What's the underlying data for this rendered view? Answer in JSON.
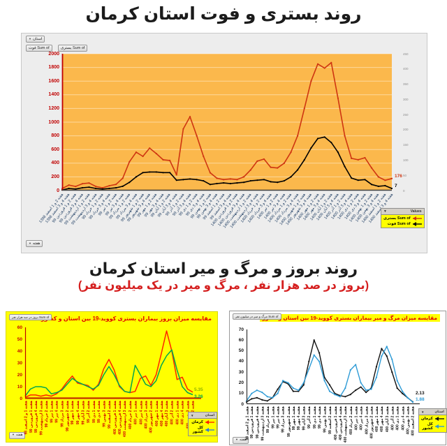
{
  "page": {
    "background": "#ffffff",
    "section1_title": "روند بستری و فوت استان کرمان",
    "section2_title": "روند بروز و مرگ و میر استان کرمان",
    "section2_subtitle": "(بروز در صد هزار نفر ، مرگ و میر در یک میلیون نفر)"
  },
  "chart_data": [
    {
      "id": "hospitalization-death-trend",
      "type": "line",
      "title": "",
      "plot_bg": "#FBB84C",
      "panel_bg": "#EDEDED",
      "ylabel_color": "#C00000",
      "x_label_color": "#17375E",
      "left_axis": {
        "min": 0,
        "max": 2000,
        "step": 200
      },
      "right_axis": {
        "min": 0,
        "max": 450,
        "step": 50
      },
      "pivot": {
        "filter_button": "استان",
        "field_buttons": [
          "Sum of فوت",
          "Sum of بستری"
        ],
        "axis_button": "هفته",
        "legend_header": "Values"
      },
      "x_labels": [
        "هفته 2 و 1 اسفند 1398",
        "هفته 4 و 3 اسفند 1398",
        "هفته 2 و 1 فروردین 99",
        "هفته 4 و 3 فروردین 99",
        "هفته 2 و 1 اردیبهشت 99",
        "هفته 4 و 3 اردیبهشت 99",
        "هفته 2 و 1 خرداد 99",
        "هفته 4 و 3 خرداد 99",
        "هفته 2 و 1 تیر 99",
        "هفته 4 و 3 تیر 99",
        "هفته 2 و 1 مرداد 99",
        "هفته 4 و 3 مرداد 99",
        "هفته 2 و 1 شهریور 99",
        "هفته 4 و 3 شهریور 99",
        "هفته 2 و 1 مهر 99",
        "هفته 4 و 3 مهر 99",
        "هفته 2 و 1 آبان 99",
        "هفته 4 و 3 آبان 99",
        "هفته 2 و 1 آذر 99",
        "هفته 4 و 3 آذر 99",
        "هفته 2 و 1 دی 99",
        "هفته 4 و 3 دی 99",
        "هفته 2 و 1 بهمن 99",
        "هفته 4 و 3 بهمن 99",
        "هفته 2 و 1 اسفند 99",
        "هفته 4 و 3 اسفند 99",
        "هفته 2 و 1 فروردین 1400",
        "هفته 4 و 3 فروردین 1400",
        "هفته 2 و 1 اردیبهشت 1400",
        "هفته 4 و 3 اردیبهشت 1400",
        "هفته 2 و 1 خرداد 1400",
        "هفته 4 و 3 خرداد 1400",
        "هفته 2 و 1 تیر 1400",
        "هفته 4 و 3 تیر 1400",
        "هفته 2 و 1 مرداد 1400",
        "هفته 4 و 3 مرداد 1400",
        "هفته 2 و 1 شهریور 1400",
        "هفته 4 و 3 شهریور 1400",
        "هفته 2 و 1 مهر 1400",
        "هفته 4 و 3 مهر 1400",
        "هفته 2 و 1 آبان 1400",
        "هفته 4 و 3 آبان 1400",
        "هفته 2 و 1 آذر 1400",
        "هفته 4 و 3 آذر 1400",
        "هفته 2 و 1 دی 1400",
        "هفته 4 و 3 دی 1400",
        "هفته 2 و 1 بهمن 1400",
        "هفته 4 و 3 بهمن 1400",
        "هفته 2 و 1 اسفند 1400",
        "هفته 4 و 3 اسفند 1400"
      ],
      "series": [
        {
          "name": "Sum of بستری",
          "color": "#CE3511",
          "axis": "left",
          "end_label": "176",
          "values": [
            30,
            80,
            60,
            100,
            110,
            60,
            40,
            70,
            90,
            180,
            420,
            560,
            500,
            620,
            540,
            450,
            440,
            230,
            900,
            1080,
            800,
            500,
            260,
            180,
            160,
            170,
            160,
            200,
            300,
            430,
            460,
            340,
            330,
            400,
            560,
            800,
            1200,
            1600,
            1850,
            1790,
            1870,
            1350,
            800,
            470,
            450,
            480,
            330,
            200,
            150,
            176
          ]
        },
        {
          "name": "Sum of فوت",
          "color": "#000000",
          "axis": "right",
          "end_label": "7",
          "values": [
            2,
            7,
            5,
            9,
            11,
            7,
            5,
            7,
            9,
            14,
            27,
            45,
            59,
            61,
            61,
            59,
            59,
            34,
            36,
            38,
            36,
            32,
            20,
            23,
            25,
            23,
            25,
            27,
            32,
            34,
            36,
            29,
            27,
            32,
            45,
            68,
            101,
            140,
            171,
            176,
            158,
            126,
            79,
            41,
            34,
            36,
            20,
            14,
            16,
            7
          ]
        }
      ]
    },
    {
      "id": "incidence-comparison",
      "type": "line",
      "title": "مقایسه میزان بروز بیماران بستری کووید-19 بین استان و کشور",
      "title_color": "#E00000",
      "panel_bg": "#FFFF00",
      "ylabel_color": "#C00000",
      "x_label_color": "#D00000",
      "left_axis": {
        "min": 0,
        "max": 60,
        "step": 10
      },
      "pivot": {
        "field_button": "Sum of بروز در صد هزار نفر",
        "axis_button": "هفته",
        "legend_header": "استان"
      },
      "x_labels": [
        "هفته 1 و 2 اسفند 98",
        "هفته 1 فروردین 99",
        "هفته 4 فروردین 99",
        "هفته 3 اردیبهشت 99",
        "هفته 2 خرداد 99",
        "هفته 1 تیر 99",
        "هفته 4 تیر 99",
        "هفته 3 مرداد 99",
        "هفته 2 شهریور 99",
        "هفته 1 مهر 99",
        "هفته 4 مهر 99",
        "هفته 3 آبان 99",
        "هفته 2 آذر 99",
        "هفته 1 دی 99",
        "هفته 4 دی 99",
        "هفته 3 بهمن 99",
        "هفته 2 اسفند 99",
        "هفته 1 فروردین 400",
        "هفته 4 فروردین 400",
        "هفته 3 اردیبهشت 400",
        "هفته 2 خرداد 400",
        "هفته 1 تیر 400",
        "هفته 4 تیر 400",
        "هفته 3 مرداد 400",
        "هفته 2 شهریور 400",
        "هفته 1 مهر 400",
        "هفته 4 مهر 400",
        "هفته 3 آبان 400",
        "هفته 2 آذر 400",
        "هفته 1 دی 400",
        "هفته 4 دی 400",
        "هفته 3 بهمن 400",
        "هفته 2 اسفند 400"
      ],
      "series": [
        {
          "name": "کرمان",
          "color": "#FF2400",
          "axis": "left",
          "end_label": "5.35",
          "end_label_color": "#8DB000",
          "legend_marker_color": "#FF2400",
          "values": [
            1,
            3,
            3,
            2,
            3,
            2,
            4,
            8,
            14,
            19,
            13,
            12,
            11,
            7,
            12,
            25,
            33,
            24,
            10,
            6,
            5,
            6,
            17,
            19,
            11,
            20,
            38,
            57,
            40,
            16,
            18,
            8,
            5.35
          ]
        },
        {
          "name": "کل کشور",
          "color": "#00A550",
          "axis": "left",
          "end_label": "3.26",
          "end_label_color": "#00A550",
          "legend_marker_color": "#2F7ED8",
          "values": [
            2,
            8,
            10,
            10,
            9,
            4,
            5,
            7,
            12,
            17,
            14,
            12,
            10,
            8,
            11,
            20,
            27,
            20,
            11,
            6,
            5,
            28,
            20,
            12,
            10,
            15,
            28,
            36,
            41,
            24,
            10,
            5,
            3.26
          ]
        }
      ]
    },
    {
      "id": "mortality-comparison",
      "type": "line",
      "title": "مقایسه میزان مرگ و میر بیماران بستری کووید-19 بین استان و کشور",
      "title_color": "#E00000",
      "title_bg": "#FFFF00",
      "panel_bg": "#FFFFFF",
      "ylabel_color": "#111111",
      "x_label_color": "#111111",
      "left_axis": {
        "min": 0,
        "max": 70,
        "step": 10
      },
      "pivot": {
        "field_button": "Sum of مرگ و میر در میلیون نفر",
        "axis_button": "هفته",
        "legend_header": "استان"
      },
      "x_labels": [
        "هفته 1 و 2 اسفند 98",
        "هفته 1 فروردین 99",
        "هفته 4 فروردین 99",
        "هفته 3 اردیبهشت 99",
        "هفته 2 خرداد 99",
        "هفته 1 تیر 99",
        "هفته 4 تیر 99",
        "هفته 3 مرداد 99",
        "هفته 2 شهریور 99",
        "هفته 1 مهر 99",
        "هفته 4 مهر 99",
        "هفته 3 آبان 99",
        "هفته 2 آذر 99",
        "هفته 1 دی 99",
        "هفته 4 دی 99",
        "هفته 3 بهمن 99",
        "هفته 2 اسفند 99",
        "هفته 1 فروردین 400",
        "هفته 4 فروردین 400",
        "هفته 3 اردیبهشت 400",
        "هفته 2 خرداد 400",
        "هفته 1 تیر 400",
        "هفته 4 تیر 400",
        "هفته 3 مرداد 400",
        "هفته 2 شهریور 400",
        "هفته 1 مهر 400",
        "هفته 4 مهر 400",
        "هفته 3 آبان 400",
        "هفته 2 آذر 400",
        "هفته 1 دی 400",
        "هفته 4 دی 400",
        "هفته 3 بهمن 400",
        "هفته 2 اسفند 400"
      ],
      "series": [
        {
          "name": "کرمان",
          "color": "#111111",
          "axis": "left",
          "end_label": "2.13",
          "end_label_color": "#111111",
          "values": [
            2,
            5,
            6,
            4,
            3,
            6,
            14,
            21,
            19,
            12,
            12,
            18,
            40,
            60,
            48,
            25,
            18,
            10,
            8,
            7,
            9,
            13,
            16,
            11,
            15,
            35,
            52,
            45,
            30,
            15,
            10,
            6,
            2.13
          ]
        },
        {
          "name": "کل کشور",
          "color": "#2E9BD6",
          "axis": "left",
          "end_label": "1.88",
          "end_label_color": "#2E9BD6",
          "values": [
            3,
            10,
            13,
            11,
            7,
            6,
            10,
            22,
            20,
            15,
            13,
            20,
            33,
            46,
            40,
            22,
            12,
            9,
            7,
            15,
            32,
            37,
            20,
            13,
            14,
            25,
            45,
            54,
            42,
            22,
            12,
            6,
            1.88
          ]
        }
      ]
    }
  ]
}
